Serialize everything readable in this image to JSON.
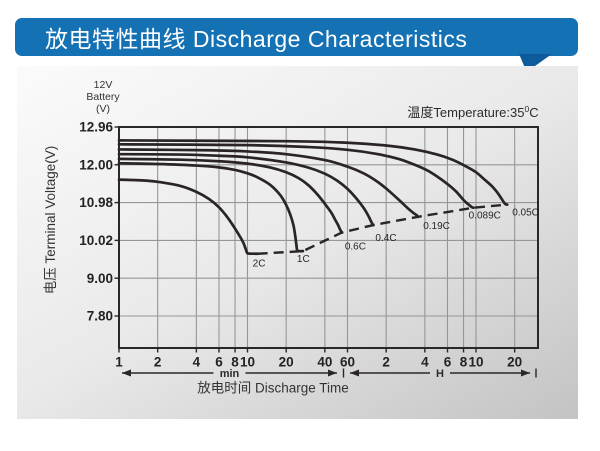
{
  "header": {
    "title": "放电特性曲线 Discharge Characteristics",
    "bg_color": "#1371b4",
    "tail_color": "#0d5a9c",
    "text_color": "#ffffff"
  },
  "panel": {
    "bg_top": "#fbfbfb",
    "bg_mid": "#e9e9e9",
    "bg_bottom": "#c3c3c3"
  },
  "chart_data": {
    "type": "line",
    "battery_label_lines": [
      "12V",
      "Battery",
      "(V)"
    ],
    "temperature_label": {
      "prefix": "温度Temperature:35",
      "sup": "0",
      "suffix": "C"
    },
    "xlabel": "放电时间 Discharge Time",
    "ylabel": "电压 Terminal Voltage(V)",
    "x_axis": {
      "scale": "log",
      "unit": "minutes",
      "ticks": [
        {
          "t": 1,
          "label": "1"
        },
        {
          "t": 2,
          "label": "2"
        },
        {
          "t": 4,
          "label": "4"
        },
        {
          "t": 6,
          "label": "6"
        },
        {
          "t": 8,
          "label": "8"
        },
        {
          "t": 10,
          "label": "10"
        },
        {
          "t": 20,
          "label": "20"
        },
        {
          "t": 40,
          "label": "40"
        },
        {
          "t": 60,
          "label": "60"
        },
        {
          "t": 120,
          "label": "2"
        },
        {
          "t": 240,
          "label": "4"
        },
        {
          "t": 360,
          "label": "6"
        },
        {
          "t": 480,
          "label": "8"
        },
        {
          "t": 600,
          "label": "10"
        },
        {
          "t": 1200,
          "label": "20"
        }
      ],
      "unit_ranges": [
        {
          "label": "min"
        },
        {
          "label": "H"
        }
      ]
    },
    "y_axis": {
      "ticks": [
        {
          "v": 12.96,
          "label": "12.96"
        },
        {
          "v": 12.0,
          "label": "12.00"
        },
        {
          "v": 10.98,
          "label": "10.98"
        },
        {
          "v": 10.02,
          "label": "10.02"
        },
        {
          "v": 9.0,
          "label": "9.00"
        },
        {
          "v": 7.8,
          "label": "7.80"
        }
      ]
    },
    "series": [
      {
        "name": "2C",
        "label_offset": [
          -5,
          13
        ],
        "points": [
          [
            1,
            11.6
          ],
          [
            1.5,
            11.58
          ],
          [
            2,
            11.54
          ],
          [
            3,
            11.43
          ],
          [
            4,
            11.27
          ],
          [
            5,
            11.08
          ],
          [
            6,
            10.86
          ],
          [
            7,
            10.6
          ],
          [
            8,
            10.32
          ],
          [
            8.8,
            10.1
          ],
          [
            9.3,
            9.95
          ],
          [
            9.7,
            9.78
          ],
          [
            9.95,
            9.68
          ],
          [
            10.3,
            9.665
          ],
          [
            12,
            9.66
          ]
        ]
      },
      {
        "name": "1C",
        "label_offset": [
          -6,
          11
        ],
        "points": [
          [
            1,
            12.04
          ],
          [
            2,
            12.02
          ],
          [
            4,
            11.98
          ],
          [
            6,
            11.93
          ],
          [
            8,
            11.86
          ],
          [
            10,
            11.77
          ],
          [
            12,
            11.66
          ],
          [
            15,
            11.46
          ],
          [
            18,
            11.18
          ],
          [
            20,
            10.92
          ],
          [
            21.5,
            10.68
          ],
          [
            22.8,
            10.4
          ],
          [
            23.6,
            10.1
          ],
          [
            24.1,
            9.85
          ],
          [
            24.4,
            9.74
          ],
          [
            25,
            9.73
          ],
          [
            27,
            9.73
          ]
        ]
      },
      {
        "name": "0.6C",
        "label_offset": [
          3,
          17
        ],
        "points": [
          [
            1,
            12.15
          ],
          [
            3,
            12.13
          ],
          [
            6,
            12.09
          ],
          [
            10,
            12.03
          ],
          [
            15,
            11.93
          ],
          [
            20,
            11.8
          ],
          [
            25,
            11.64
          ],
          [
            30,
            11.44
          ],
          [
            35,
            11.2
          ],
          [
            40,
            10.95
          ],
          [
            45,
            10.72
          ],
          [
            48,
            10.55
          ],
          [
            50.5,
            10.42
          ],
          [
            52.5,
            10.3
          ],
          [
            53.8,
            10.23
          ],
          [
            54.2,
            10.22
          ]
        ]
      },
      {
        "name": "0.4C",
        "label_offset": [
          2,
          16
        ],
        "points": [
          [
            1,
            12.27
          ],
          [
            3,
            12.26
          ],
          [
            6,
            12.23
          ],
          [
            10,
            12.19
          ],
          [
            20,
            12.06
          ],
          [
            30,
            11.92
          ],
          [
            40,
            11.76
          ],
          [
            50,
            11.57
          ],
          [
            60,
            11.35
          ],
          [
            70,
            11.1
          ],
          [
            80,
            10.85
          ],
          [
            87,
            10.65
          ],
          [
            91,
            10.52
          ],
          [
            94,
            10.43
          ],
          [
            95.5,
            10.41
          ]
        ]
      },
      {
        "name": "0.19C",
        "label_offset": [
          5,
          12
        ],
        "points": [
          [
            1,
            12.39
          ],
          [
            5,
            12.37
          ],
          [
            10,
            12.34
          ],
          [
            20,
            12.27
          ],
          [
            40,
            12.12
          ],
          [
            60,
            11.95
          ],
          [
            80,
            11.77
          ],
          [
            100,
            11.57
          ],
          [
            120,
            11.36
          ],
          [
            150,
            11.06
          ],
          [
            175,
            10.85
          ],
          [
            195,
            10.72
          ],
          [
            207,
            10.66
          ],
          [
            213,
            10.62
          ]
        ]
      },
      {
        "name": "0.089C",
        "label_offset": [
          -5,
          11
        ],
        "points": [
          [
            1,
            12.52
          ],
          [
            10,
            12.5
          ],
          [
            30,
            12.45
          ],
          [
            60,
            12.38
          ],
          [
            100,
            12.28
          ],
          [
            150,
            12.15
          ],
          [
            200,
            12.0
          ],
          [
            250,
            11.85
          ],
          [
            300,
            11.68
          ],
          [
            360,
            11.48
          ],
          [
            420,
            11.28
          ],
          [
            480,
            11.05
          ],
          [
            530,
            10.92
          ],
          [
            560,
            10.86
          ],
          [
            575,
            10.85
          ]
        ]
      },
      {
        "name": "0.05C",
        "label_offset": [
          5,
          11
        ],
        "points": [
          [
            1,
            12.62
          ],
          [
            20,
            12.6
          ],
          [
            60,
            12.56
          ],
          [
            120,
            12.49
          ],
          [
            200,
            12.39
          ],
          [
            300,
            12.26
          ],
          [
            400,
            12.12
          ],
          [
            500,
            11.96
          ],
          [
            600,
            11.8
          ],
          [
            700,
            11.6
          ],
          [
            800,
            11.42
          ],
          [
            880,
            11.25
          ],
          [
            950,
            11.08
          ],
          [
            1010,
            10.95
          ],
          [
            1050,
            10.93
          ]
        ]
      }
    ],
    "cutoff_line": {
      "points": [
        [
          12,
          9.66
        ],
        [
          27,
          9.73
        ],
        [
          54.2,
          10.22
        ],
        [
          95.5,
          10.41
        ],
        [
          213,
          10.62
        ],
        [
          575,
          10.85
        ],
        [
          1050,
          10.93
        ]
      ]
    },
    "colors": {
      "curve": "#2a2425",
      "grid": "#969696",
      "frame": "#2b2728",
      "text": "#2b2b2b"
    }
  }
}
